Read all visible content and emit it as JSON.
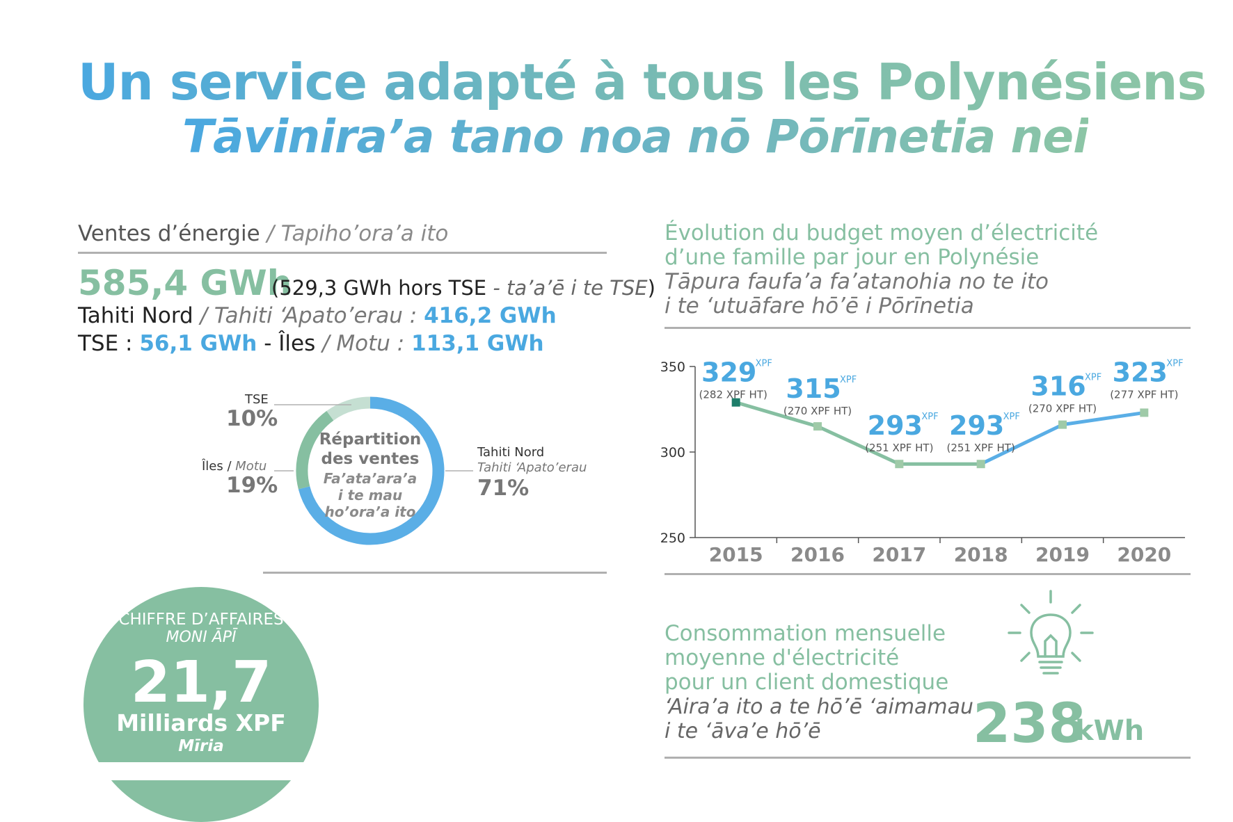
{
  "header": {
    "title": "Un service adapté à tous les Polynésiens",
    "subtitle": "Tāvinira’a tano noa nō Pōrīnetia nei"
  },
  "sales": {
    "title": "Ventes d’énergie",
    "title_tahitian": "/ Tapiho’ora’a ito",
    "total": "585,4 GWh",
    "total_note_prefix": "(529,3 GWh hors TSE",
    "total_note_tahitian": " - ta’a’ē i te TSE",
    "total_note_suffix": ")",
    "tahiti_nord_label": "Tahiti Nord",
    "tahiti_nord_tahitian": " / Tahiti ‘Apato’erau : ",
    "tahiti_nord_value": "416,2 GWh",
    "tse_label": "TSE : ",
    "tse_value": "56,1 GWh",
    "iles_sep": " - Îles",
    "iles_tahitian": " / Motu : ",
    "iles_value": "113,1 GWh"
  },
  "donut": {
    "center_line1": "Répartition",
    "center_line2": "des ventes",
    "center_tah1": "Fa’ata’ara’a",
    "center_tah2": "i te mau",
    "center_tah3": "ho’ora’a ito",
    "slices": [
      {
        "label": "Tahiti Nord",
        "label_tahitian": "Tahiti ‘Apato’erau",
        "pct_text": "71%",
        "value": 71,
        "color": "#5aaee6"
      },
      {
        "label": "Îles",
        "label_tahitian": "Motu",
        "pct_text": "19%",
        "value": 19,
        "color": "#86bfa1"
      },
      {
        "label": "TSE",
        "label_tahitian": "",
        "pct_text": "10%",
        "value": 10,
        "color": "#c5dfd2"
      }
    ]
  },
  "revenue": {
    "title": "CHIFFRE D’AFFAIRES",
    "title_tahitian": "MONI ĀPĪ",
    "value": "21,7",
    "unit": "Milliards XPF",
    "unit_tahitian": "Mīria"
  },
  "budget": {
    "title1": "Évolution du budget moyen d’électricité",
    "title2": "d’une famille par jour en Polynésie",
    "sub1": "Tāpura faufa’a fa’atanohia no te ito",
    "sub2": "i te ‘utuāfare hō’ē i Pōrīnetia"
  },
  "chart_data": {
    "type": "line",
    "x": [
      "2015",
      "2016",
      "2017",
      "2018",
      "2019",
      "2020"
    ],
    "series": [
      {
        "values": [
          329,
          315,
          293,
          293,
          316,
          323
        ]
      }
    ],
    "value_labels": [
      "329",
      "315",
      "293",
      "293",
      "316",
      "323"
    ],
    "unit_label": "XPF",
    "ht_labels": [
      "(282 XPF HT)",
      "(270 XPF HT)",
      "(251 XPF HT)",
      "(251 XPF HT)",
      "(270 XPF HT)",
      "(277 XPF HT)"
    ],
    "yticks": [
      "250",
      "300",
      "350"
    ],
    "ylim": [
      250,
      350
    ],
    "colors": {
      "rising": "#5aaee6",
      "falling": "#86bfa1",
      "first_marker": "#1e7e6a",
      "marker": "#9fcaa8"
    }
  },
  "consumption": {
    "title1": "Consommation mensuelle",
    "title2": "moyenne d'électricité",
    "title3": "pour un client domestique",
    "sub1": "‘Aira’a ito a te hō’ē ‘aimamau",
    "sub2": "i te ‘āva’e hō’ē",
    "value": "238",
    "unit": "kWh",
    "icon": "lightbulb-icon"
  }
}
